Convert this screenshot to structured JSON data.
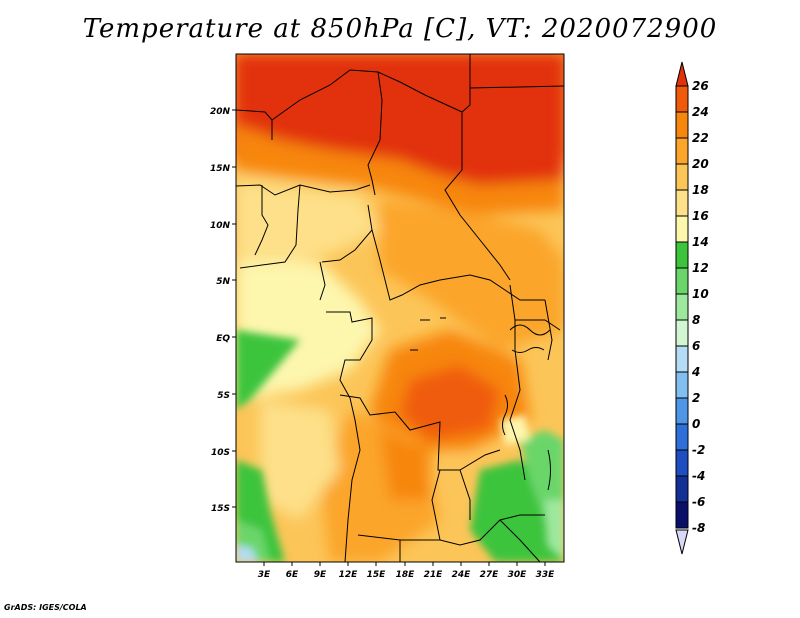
{
  "title": "Temperature at 850hPa [C], VT: 2020072900",
  "footer": "GrADS: IGES/COLA",
  "map": {
    "lat_labels": [
      "20N",
      "15N",
      "10N",
      "5N",
      "EQ",
      "5S",
      "10S",
      "15S"
    ],
    "lon_labels": [
      "3E",
      "6E",
      "9E",
      "12E",
      "15E",
      "18E",
      "21E",
      "24E",
      "27E",
      "30E",
      "33E"
    ]
  },
  "colorbar": {
    "labels": [
      "26",
      "24",
      "22",
      "20",
      "18",
      "16",
      "14",
      "12",
      "10",
      "8",
      "6",
      "4",
      "2",
      "0",
      "-2",
      "-4",
      "-6",
      "-8"
    ],
    "colors": [
      "#e23209",
      "#f05b0a",
      "#f7860d",
      "#fba52b",
      "#fcc558",
      "#fde089",
      "#fdf6ad",
      "#3cc43c",
      "#6ad66a",
      "#9ee89e",
      "#d2f6d2",
      "#b4dcf4",
      "#82bef0",
      "#5096e6",
      "#2e70d8",
      "#1e4ec2",
      "#123096",
      "#0a106a"
    ]
  }
}
